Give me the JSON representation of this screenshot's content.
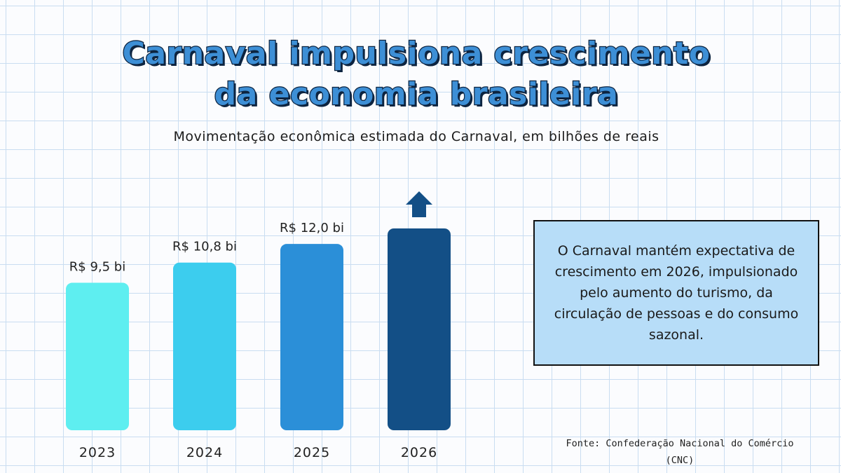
{
  "header": {
    "title_line1": "Carnaval impulsiona crescimento",
    "title_line2": "da economia brasileira",
    "subtitle": "Movimentação econômica estimada do Carnaval, em bilhões de reais"
  },
  "colors": {
    "bar_2023": "#5eeef0",
    "bar_2024": "#3ccdee",
    "bar_2025": "#2b8fd8",
    "bar_2026": "#134f86",
    "arrow": "#134f86",
    "note_bg": "#b7ddf8"
  },
  "chart_data": {
    "type": "bar",
    "title": "Movimentação econômica estimada do Carnaval, em bilhões de reais",
    "categories": [
      "2023",
      "2024",
      "2025",
      "2026"
    ],
    "values": [
      9.5,
      10.8,
      12.0,
      13.0
    ],
    "value_labels": [
      "R$ 9,5 bi",
      "R$ 10,8 bi",
      "R$ 12,0 bi",
      ""
    ],
    "ylim": [
      0,
      13
    ],
    "xlabel": "",
    "ylabel": "",
    "annotations": [
      "upward-arrow above 2026 (growth expected, value not stated)"
    ]
  },
  "note": {
    "text": "O Carnaval mantém expectativa de crescimento em 2026, impulsionado pelo aumento do turismo, da circulação de pessoas e do consumo sazonal."
  },
  "source": {
    "text": "Fonte: Confederação Nacional do Comércio (CNC)"
  }
}
